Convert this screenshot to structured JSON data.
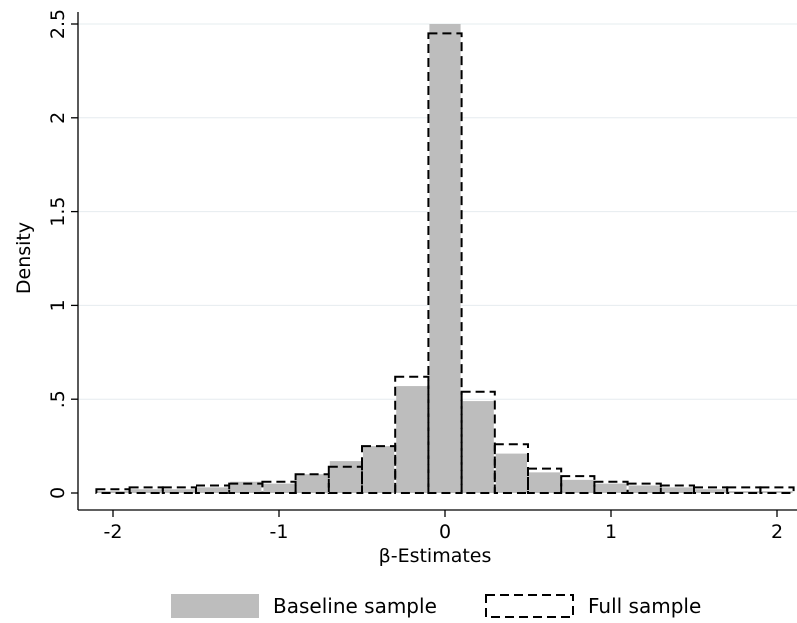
{
  "chart_data": {
    "type": "bar",
    "subtype": "overlaid-histogram",
    "xlabel": "β-Estimates",
    "ylabel": "Density",
    "xlim": [
      -2.1,
      2.1
    ],
    "ylim": [
      0,
      2.5
    ],
    "x_ticks": [
      -2,
      -1,
      0,
      1,
      2
    ],
    "x_tick_labels": [
      "-2",
      "-1",
      "0",
      "1",
      "2"
    ],
    "y_ticks": [
      0,
      0.5,
      1,
      1.5,
      2,
      2.5
    ],
    "y_tick_labels": [
      "0",
      ".5",
      "1",
      "1.5",
      "2",
      "2.5"
    ],
    "grid": "horizontal",
    "legend_position": "bottom",
    "bin_edges": [
      -2.1,
      -1.9,
      -1.7,
      -1.5,
      -1.3,
      -1.1,
      -0.9,
      -0.7,
      -0.5,
      -0.3,
      -0.1,
      0.1,
      0.3,
      0.5,
      0.7,
      0.9,
      1.1,
      1.3,
      1.5,
      1.7,
      1.9,
      2.1
    ],
    "series": [
      {
        "name": "Baseline sample",
        "style": "filled",
        "color": "#bdbdbd",
        "values": [
          0.01,
          0.02,
          0.02,
          0.03,
          0.06,
          0.05,
          0.1,
          0.17,
          0.25,
          0.57,
          2.5,
          0.49,
          0.21,
          0.11,
          0.07,
          0.05,
          0.04,
          0.03,
          0.02,
          0.01,
          0.01
        ]
      },
      {
        "name": "Full sample",
        "style": "dashed-outline",
        "color": "#000000",
        "values": [
          0.02,
          0.03,
          0.03,
          0.04,
          0.05,
          0.06,
          0.1,
          0.14,
          0.25,
          0.62,
          2.45,
          0.54,
          0.26,
          0.13,
          0.09,
          0.06,
          0.05,
          0.04,
          0.03,
          0.03,
          0.03
        ]
      }
    ]
  }
}
